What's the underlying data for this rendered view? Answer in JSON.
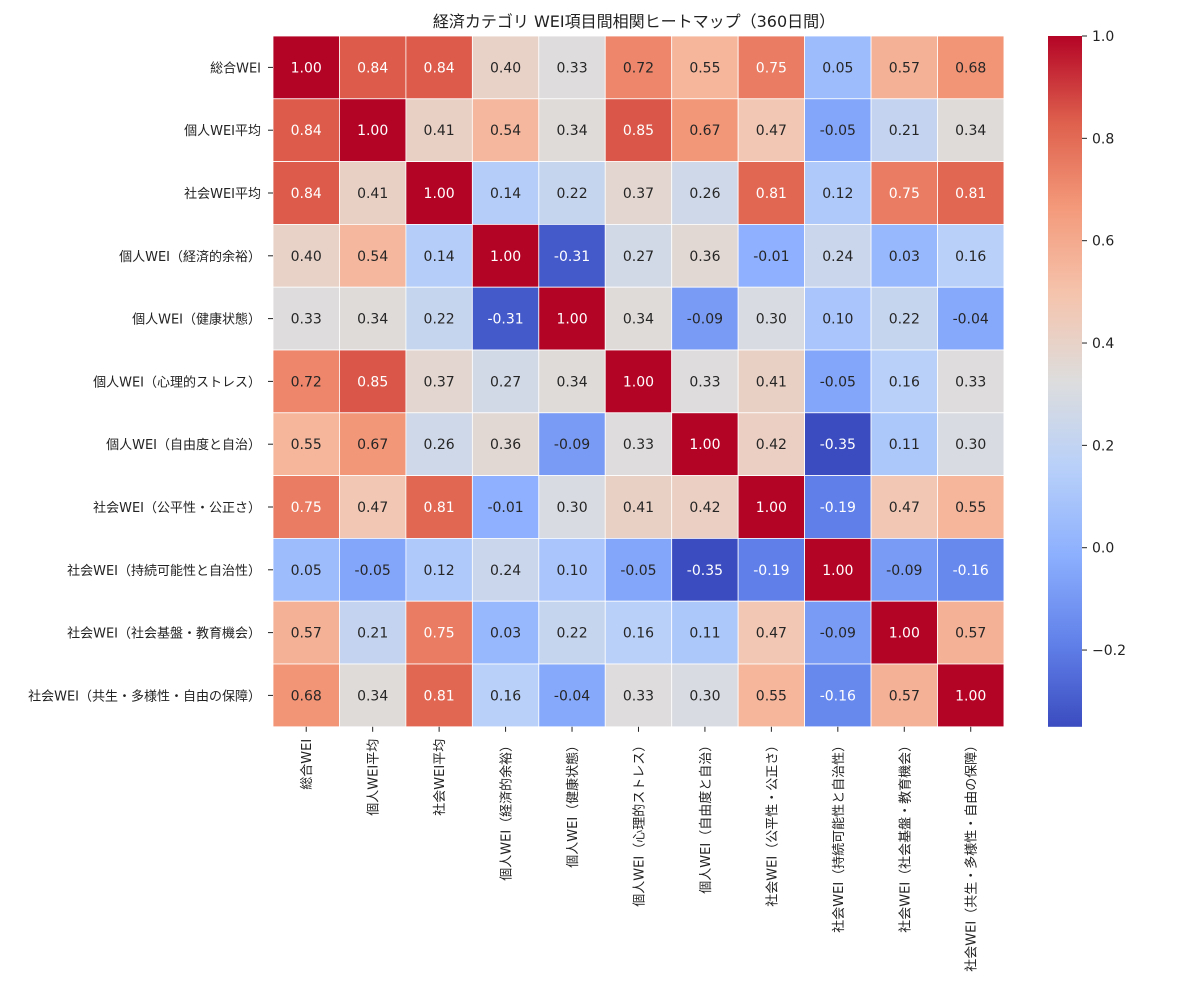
{
  "chart_data": {
    "type": "heatmap",
    "title": "経済カテゴリ WEI項目間相関ヒートマップ（360日間）",
    "labels": [
      "総合WEI",
      "個人WEI平均",
      "社会WEI平均",
      "個人WEI（経済的余裕）",
      "個人WEI（健康状態）",
      "個人WEI（心理的ストレス）",
      "個人WEI（自由度と自治）",
      "社会WEI（公平性・公正さ）",
      "社会WEI（持続可能性と自治性）",
      "社会WEI（社会基盤・教育機会）",
      "社会WEI（共生・多様性・自由の保障）"
    ],
    "matrix": [
      [
        1.0,
        0.84,
        0.84,
        0.4,
        0.33,
        0.72,
        0.55,
        0.75,
        0.05,
        0.57,
        0.68
      ],
      [
        0.84,
        1.0,
        0.41,
        0.54,
        0.34,
        0.85,
        0.67,
        0.47,
        -0.05,
        0.21,
        0.34
      ],
      [
        0.84,
        0.41,
        1.0,
        0.14,
        0.22,
        0.37,
        0.26,
        0.81,
        0.12,
        0.75,
        0.81
      ],
      [
        0.4,
        0.54,
        0.14,
        1.0,
        -0.31,
        0.27,
        0.36,
        -0.01,
        0.24,
        0.03,
        0.16
      ],
      [
        0.33,
        0.34,
        0.22,
        -0.31,
        1.0,
        0.34,
        -0.09,
        0.3,
        0.1,
        0.22,
        -0.04
      ],
      [
        0.72,
        0.85,
        0.37,
        0.27,
        0.34,
        1.0,
        0.33,
        0.41,
        -0.05,
        0.16,
        0.33
      ],
      [
        0.55,
        0.67,
        0.26,
        0.36,
        -0.09,
        0.33,
        1.0,
        0.42,
        -0.35,
        0.11,
        0.3
      ],
      [
        0.75,
        0.47,
        0.81,
        -0.01,
        0.3,
        0.41,
        0.42,
        1.0,
        -0.19,
        0.47,
        0.55
      ],
      [
        0.05,
        -0.05,
        0.12,
        0.24,
        0.1,
        -0.05,
        -0.35,
        -0.19,
        1.0,
        -0.09,
        -0.16
      ],
      [
        0.57,
        0.21,
        0.75,
        0.03,
        0.22,
        0.16,
        0.11,
        0.47,
        -0.09,
        1.0,
        0.57
      ],
      [
        0.68,
        0.34,
        0.81,
        0.16,
        -0.04,
        0.33,
        0.3,
        0.55,
        -0.16,
        0.57,
        1.0
      ]
    ],
    "value_range": [
      -0.35,
      1.0
    ],
    "colormap": "coolwarm",
    "colorbar_ticks": [
      1.0,
      0.8,
      0.6,
      0.4,
      0.2,
      0.0,
      -0.2
    ],
    "colorbar_tick_labels": [
      "1.0",
      "0.8",
      "0.6",
      "0.4",
      "0.2",
      "0.0",
      "−0.2"
    ],
    "annotation_format": "0.00"
  }
}
